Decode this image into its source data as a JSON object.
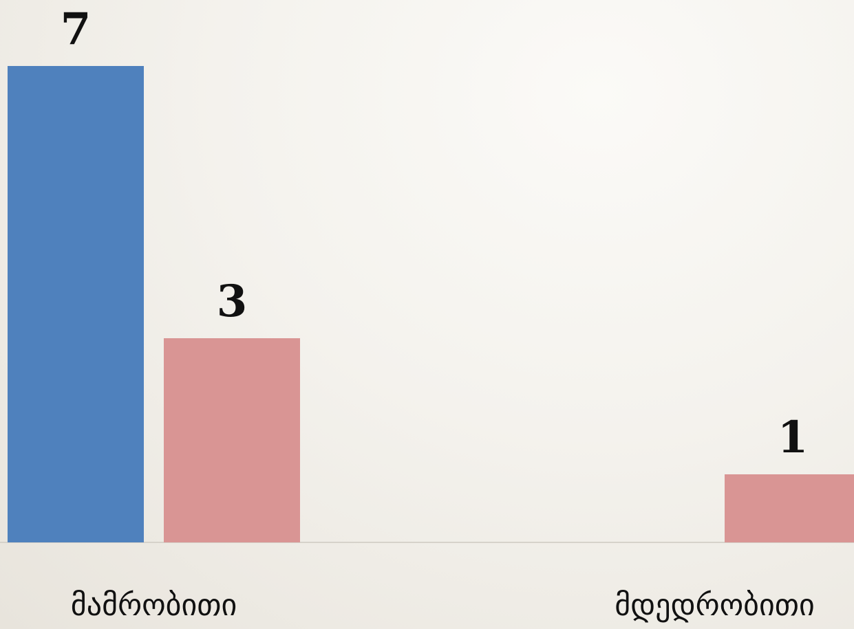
{
  "chart_data": {
    "type": "bar",
    "categories": [
      "მამრობითი",
      "მდედრობითი"
    ],
    "series": [
      {
        "color": "#4f81bd",
        "values": [
          7,
          null
        ]
      },
      {
        "color": "#d99594",
        "values": [
          3,
          1
        ]
      }
    ],
    "ylim": [
      0,
      7
    ],
    "grid": false
  }
}
